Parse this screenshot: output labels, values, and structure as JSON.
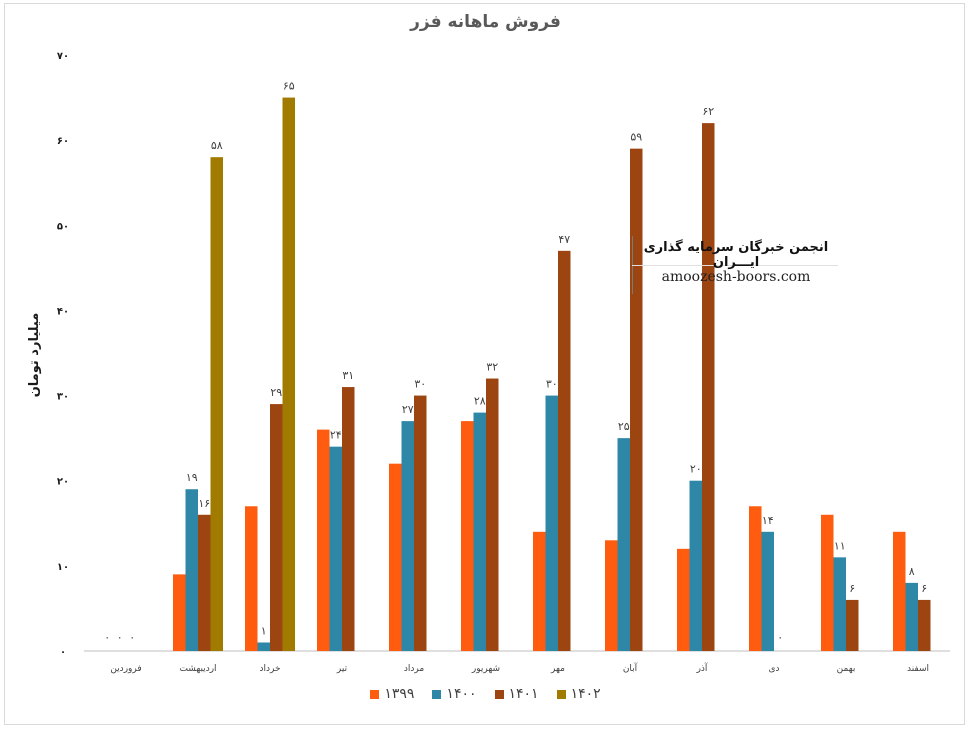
{
  "chart_data": {
    "type": "bar",
    "title": "فروش ماهانه فزر",
    "ylabel": "میلیارد تومان",
    "ylim": [
      0,
      70
    ],
    "yticks": [
      "۰",
      "۱۰",
      "۲۰",
      "۳۰",
      "۴۰",
      "۵۰",
      "۶۰",
      "۷۰"
    ],
    "categories": [
      "فروردین",
      "اردیبهشت",
      "خرداد",
      "تیر",
      "مرداد",
      "شهریور",
      "مهر",
      "آبان",
      "آذر",
      "دی",
      "بهمن",
      "اسفند"
    ],
    "series": [
      {
        "name": "۱۳۹۹",
        "color": "#ff5c0f",
        "values": [
          0,
          9,
          17,
          26,
          22,
          27,
          14,
          13,
          12,
          17,
          16,
          14
        ],
        "labels": [
          "۰",
          "",
          "",
          "",
          "",
          "",
          "",
          "",
          "",
          "",
          "",
          ""
        ]
      },
      {
        "name": "۱۴۰۰",
        "color": "#2e87a6",
        "values": [
          0,
          19,
          1,
          24,
          27,
          28,
          30,
          25,
          20,
          14,
          11,
          8
        ],
        "labels": [
          "۰",
          "۱۹",
          "۱",
          "۲۴",
          "۲۷",
          "۲۸",
          "۳۰",
          "۲۵",
          "۲۰",
          "۱۴",
          "۱۱",
          "۸"
        ]
      },
      {
        "name": "۱۴۰۱",
        "color": "#9c4511",
        "values": [
          0,
          16,
          29,
          31,
          30,
          32,
          47,
          59,
          62,
          0,
          6,
          6
        ],
        "labels": [
          "۰",
          "۱۶",
          "۲۹",
          "۳۱",
          "۳۰",
          "۳۲",
          "۴۷",
          "۵۹",
          "۶۲",
          "۰",
          "۶",
          "۶"
        ]
      },
      {
        "name": "۱۴۰۲",
        "color": "#a07b00",
        "values": [
          0,
          58,
          65,
          null,
          null,
          null,
          null,
          null,
          null,
          null,
          null,
          null
        ],
        "labels": [
          "",
          "۵۸",
          "۶۵",
          "",
          "",
          "",
          "",
          "",
          "",
          "",
          "",
          ""
        ]
      }
    ],
    "grid": false,
    "legend": "bottom"
  },
  "watermark": {
    "persian": "انجمن خبرگان سرمایه گذاری ایـــران",
    "english": "amoozesh-boors.com"
  }
}
